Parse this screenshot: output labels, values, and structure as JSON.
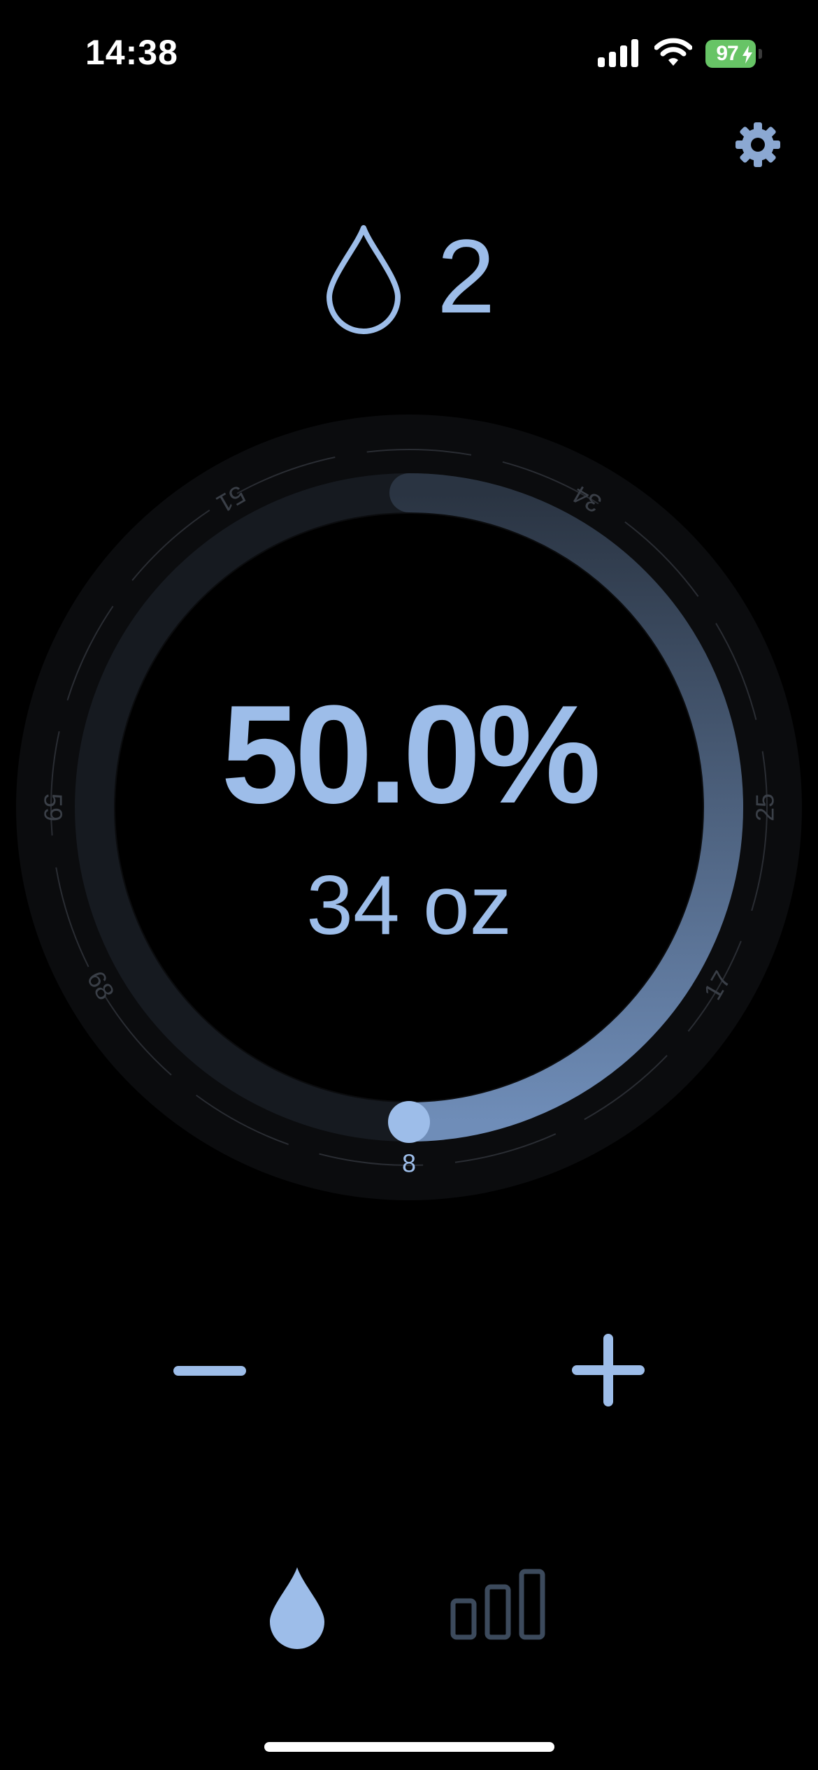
{
  "status_bar": {
    "time": "14:38",
    "battery_level": "97",
    "icons": [
      "cellular-signal-icon",
      "wifi-icon",
      "battery-charging-icon"
    ]
  },
  "header": {
    "settings_icon": "gear-icon",
    "drop_icon": "water-drop-outline-icon",
    "drop_count": "2"
  },
  "dial": {
    "percent_label": "50.0%",
    "amount_label": "34 oz",
    "progress_fraction": 0.5,
    "scale_ticks": [
      "8",
      "17",
      "25",
      "34",
      "51",
      "59",
      "68"
    ]
  },
  "controls": {
    "minus_icon": "minus-icon",
    "plus_icon": "plus-icon"
  },
  "tab_bar": {
    "tabs": [
      {
        "icon": "water-drop-icon",
        "active": true
      },
      {
        "icon": "bar-chart-icon",
        "active": false
      }
    ]
  },
  "colors": {
    "accent": "#9dbde9",
    "background": "#000000",
    "ring_outer": "#0b0c0e",
    "ring_track": "#161a20",
    "inactive_icon": "#3c4a5c",
    "battery": "#67c466"
  }
}
